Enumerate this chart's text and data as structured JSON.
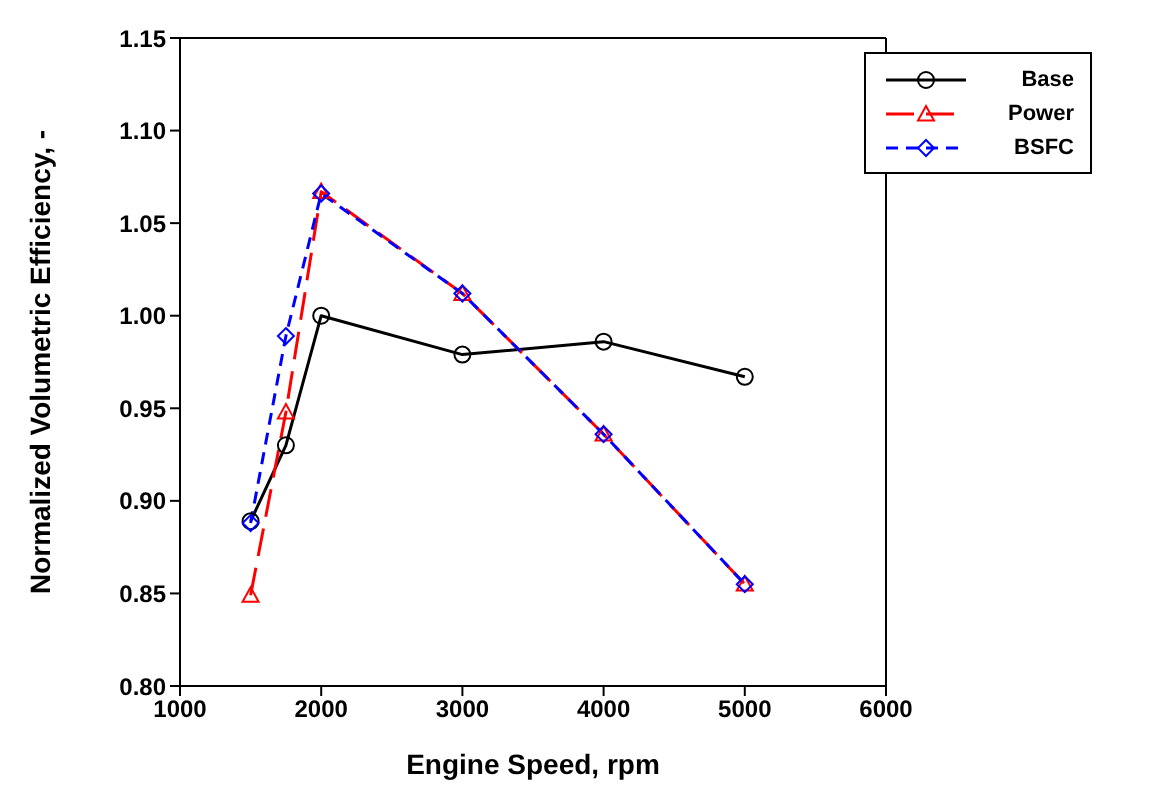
{
  "chart_data": {
    "type": "line",
    "xlabel": "Engine Speed, rpm",
    "ylabel": "Normalized Volumetric Efficiency, -",
    "x": [
      1500,
      1750,
      2000,
      3000,
      4000,
      5000
    ],
    "series": [
      {
        "name": "Base",
        "color": "#000000",
        "marker": "circle",
        "line_style": "solid",
        "values": [
          0.889,
          0.93,
          1.0,
          0.979,
          0.986,
          0.967
        ]
      },
      {
        "name": "Power",
        "color": "#ff0000",
        "marker": "triangle",
        "line_style": "dashed",
        "values": [
          0.849,
          0.948,
          1.067,
          1.012,
          0.936,
          0.855
        ]
      },
      {
        "name": "BSFC",
        "color": "#0000ff",
        "marker": "diamond",
        "line_style": "dashed",
        "values": [
          0.888,
          0.989,
          1.066,
          1.012,
          0.936,
          0.855
        ]
      }
    ],
    "xlim": [
      1000,
      6000
    ],
    "xticks": [
      1000,
      2000,
      3000,
      4000,
      5000,
      6000
    ],
    "ylim": [
      0.8,
      1.15
    ],
    "yticks": [
      {
        "value": 0.8,
        "label": "0.80"
      },
      0.85,
      {
        "value": 0.9,
        "label": "0.90"
      },
      0.95,
      {
        "value": 1.0,
        "label": "1.00"
      },
      1.05,
      {
        "value": 1.1,
        "label": "1.10"
      },
      1.15
    ],
    "grid": false,
    "legend": "top right"
  }
}
